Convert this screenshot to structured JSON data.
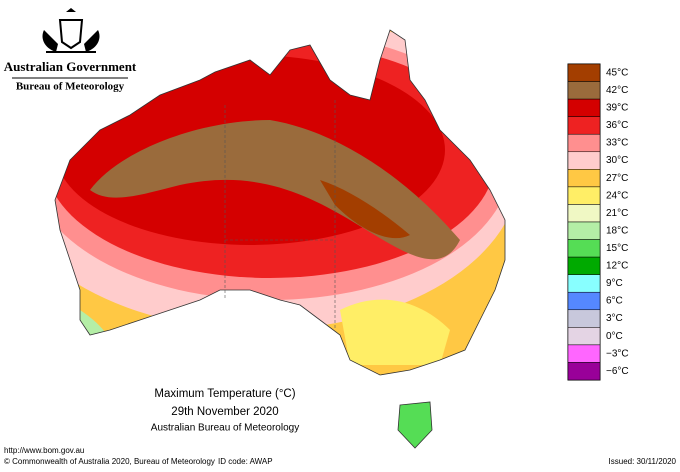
{
  "header": {
    "government": "Australian Government",
    "bureau": "Bureau of Meteorology"
  },
  "legend": [
    {
      "label": "45°C",
      "color": "#a33e00"
    },
    {
      "label": "42°C",
      "color": "#9a6b3c"
    },
    {
      "label": "39°C",
      "color": "#d40000"
    },
    {
      "label": "36°C",
      "color": "#ee2222"
    },
    {
      "label": "33°C",
      "color": "#ff8f8f"
    },
    {
      "label": "30°C",
      "color": "#ffcccc"
    },
    {
      "label": "27°C",
      "color": "#ffc844"
    },
    {
      "label": "24°C",
      "color": "#ffee66"
    },
    {
      "label": "21°C",
      "color": "#f0f8c4"
    },
    {
      "label": "18°C",
      "color": "#b4eea6"
    },
    {
      "label": "15°C",
      "color": "#55dd55"
    },
    {
      "label": "12°C",
      "color": "#00aa00"
    },
    {
      "label": "9°C",
      "color": "#88ffff"
    },
    {
      "label": "6°C",
      "color": "#5588ff"
    },
    {
      "label": "3°C",
      "color": "#c8c8dc"
    },
    {
      "label": "0°C",
      "color": "#e4d4e4"
    },
    {
      "label": "−3°C",
      "color": "#ff66ff"
    },
    {
      "label": "−6°C",
      "color": "#990099"
    }
  ],
  "caption": {
    "title": "Maximum Temperature (°C)",
    "date": "29th November 2020",
    "source": "Australian Bureau of Meteorology"
  },
  "footer": {
    "url": "http://www.bom.gov.au",
    "copyright": "© Commonwealth of Australia 2020, Bureau of Meteorology",
    "id": "ID code: AWAP",
    "issued": "Issued: 30/11/2020"
  }
}
